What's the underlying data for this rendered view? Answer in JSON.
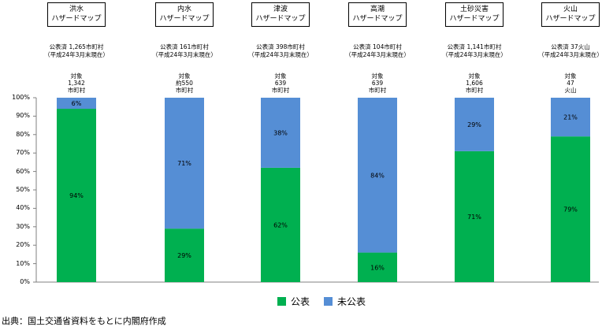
{
  "chart_data": {
    "type": "bar",
    "stacked": true,
    "categories": [
      "洪水ハザードマップ",
      "内水ハザードマップ",
      "津波ハザードマップ",
      "高潮ハザードマップ",
      "土砂災害ハザードマップ",
      "火山ハザードマップ"
    ],
    "headers": [
      {
        "line1": "洪水",
        "line2": "ハザードマップ"
      },
      {
        "line1": "内水",
        "line2": "ハザードマップ"
      },
      {
        "line1": "津波",
        "line2": "ハザードマップ"
      },
      {
        "line1": "高潮",
        "line2": "ハザードマップ"
      },
      {
        "line1": "土砂災害",
        "line2": "ハザードマップ"
      },
      {
        "line1": "火山",
        "line2": "ハザードマップ"
      }
    ],
    "published_notes": [
      {
        "line1": "公表済 1,265市町村",
        "line2": "（平成24年3月末現在）"
      },
      {
        "line1": "公表済 161市町村",
        "line2": "（平成24年3月末現在）"
      },
      {
        "line1": "公表済 398市町村",
        "line2": "（平成24年3月末現在）"
      },
      {
        "line1": "公表済 104市町村",
        "line2": "（平成24年3月末現在）"
      },
      {
        "line1": "公表済 1,141市町村",
        "line2": "（平成24年3月末現在）"
      },
      {
        "line1": "公表済 37火山",
        "line2": "（平成24年3月末現在）"
      }
    ],
    "targets": [
      [
        "対象",
        "1,342",
        "市町村"
      ],
      [
        "対象",
        "約550",
        "市町村"
      ],
      [
        "対象",
        "639",
        "市町村"
      ],
      [
        "対象",
        "639",
        "市町村"
      ],
      [
        "対象",
        "1,606",
        "市町村"
      ],
      [
        "対象",
        "47",
        "火山"
      ]
    ],
    "series": [
      {
        "name": "公表",
        "color": "#00B050",
        "values": [
          94,
          29,
          62,
          16,
          71,
          79
        ],
        "labels": [
          "94%",
          "29%",
          "62%",
          "16%",
          "71%",
          "79%"
        ]
      },
      {
        "name": "未公表",
        "color": "#558ED5",
        "values": [
          6,
          71,
          38,
          84,
          29,
          21
        ],
        "labels": [
          "6%",
          "71%",
          "38%",
          "84%",
          "29%",
          "21%"
        ]
      }
    ],
    "ylim": [
      0,
      100
    ],
    "yticks": [
      "0%",
      "10%",
      "20%",
      "30%",
      "40%",
      "50%",
      "60%",
      "70%",
      "80%",
      "90%",
      "100%"
    ],
    "legend_position": "bottom"
  },
  "source": "出典：国土交通省資料をもとに内閣府作成"
}
